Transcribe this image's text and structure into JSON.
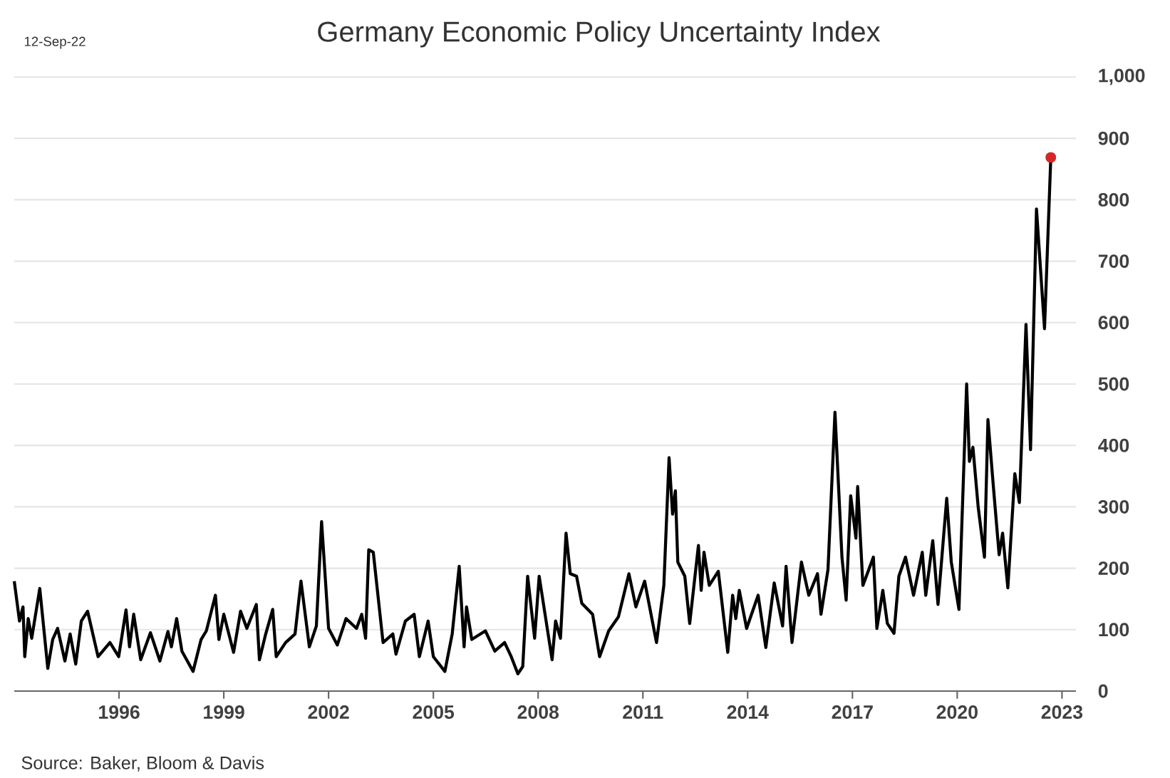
{
  "chart_data": {
    "type": "line",
    "title": "Germany Economic Policy Uncertainty Index",
    "annotations": [
      "12-Sep-22",
      "Source: Baker, Bloom & Davis"
    ],
    "xlim": [
      1993,
      2023.4
    ],
    "xticks": [
      1996,
      1999,
      2002,
      2005,
      2008,
      2011,
      2014,
      2017,
      2020,
      2023
    ],
    "ylim": [
      0,
      1000
    ],
    "yticks": [
      0,
      100,
      200,
      300,
      400,
      500,
      600,
      700,
      800,
      900,
      {
        "value": 1000,
        "label": "1,000"
      }
    ],
    "grid": "y",
    "line_style": "solid",
    "series": [
      {
        "type": "line",
        "color": "#000000",
        "x": [
          1993.0,
          1993.15,
          1993.25,
          1993.3,
          1993.4,
          1993.5,
          1993.73,
          1993.96,
          1994.1,
          1994.24,
          1994.45,
          1994.6,
          1994.76,
          1994.92,
          1995.1,
          1995.4,
          1995.74,
          1995.99,
          1996.2,
          1996.3,
          1996.42,
          1996.62,
          1996.9,
          1997.17,
          1997.4,
          1997.5,
          1997.65,
          1997.8,
          1998.12,
          1998.35,
          1998.5,
          1998.76,
          1998.86,
          1999.0,
          1999.28,
          1999.48,
          1999.66,
          1999.93,
          2000.02,
          2000.2,
          2000.4,
          2000.5,
          2000.77,
          2001.04,
          2001.21,
          2001.45,
          2001.65,
          2001.8,
          2002.0,
          2002.25,
          2002.5,
          2002.8,
          2002.95,
          2003.06,
          2003.15,
          2003.28,
          2003.56,
          2003.84,
          2003.93,
          2004.2,
          2004.45,
          2004.6,
          2004.85,
          2005.0,
          2005.33,
          2005.54,
          2005.74,
          2005.88,
          2005.95,
          2006.1,
          2006.49,
          2006.76,
          2007.04,
          2007.23,
          2007.42,
          2007.56,
          2007.7,
          2007.9,
          2008.03,
          2008.4,
          2008.5,
          2008.64,
          2008.8,
          2008.92,
          2009.1,
          2009.25,
          2009.56,
          2009.76,
          2010.02,
          2010.3,
          2010.6,
          2010.8,
          2011.05,
          2011.27,
          2011.39,
          2011.6,
          2011.75,
          2011.85,
          2011.93,
          2012.0,
          2012.2,
          2012.34,
          2012.59,
          2012.67,
          2012.75,
          2012.9,
          2013.16,
          2013.43,
          2013.57,
          2013.66,
          2013.76,
          2013.97,
          2014.3,
          2014.52,
          2014.76,
          2015.0,
          2015.1,
          2015.27,
          2015.54,
          2015.75,
          2016.0,
          2016.1,
          2016.3,
          2016.5,
          2016.7,
          2016.82,
          2016.95,
          2017.1,
          2017.15,
          2017.3,
          2017.6,
          2017.7,
          2017.87,
          2018.0,
          2018.19,
          2018.33,
          2018.52,
          2018.75,
          2019.0,
          2019.1,
          2019.3,
          2019.45,
          2019.7,
          2019.83,
          2020.05,
          2020.27,
          2020.35,
          2020.45,
          2020.6,
          2020.78,
          2020.88,
          2021.04,
          2021.2,
          2021.3,
          2021.45,
          2021.65,
          2021.78,
          2021.97,
          2022.1,
          2022.27,
          2022.5,
          2022.68
        ],
        "values": [
          179,
          114,
          137,
          56,
          118,
          86,
          167,
          37,
          84,
          102,
          49,
          93,
          44,
          114,
          130,
          56,
          79,
          56,
          132,
          72,
          125,
          51,
          95,
          49,
          97,
          72,
          118,
          65,
          32,
          84,
          98,
          156,
          84,
          125,
          63,
          130,
          102,
          141,
          51,
          93,
          133,
          56,
          79,
          93,
          179,
          72,
          106,
          276,
          102,
          75,
          118,
          102,
          125,
          86,
          230,
          226,
          79,
          93,
          60,
          114,
          125,
          56,
          114,
          56,
          32,
          93,
          203,
          72,
          137,
          84,
          98,
          65,
          79,
          56,
          28,
          40,
          187,
          86,
          187,
          51,
          114,
          86,
          257,
          191,
          187,
          143,
          125,
          56,
          98,
          121,
          191,
          137,
          179,
          114,
          79,
          172,
          380,
          288,
          326,
          210,
          187,
          110,
          237,
          164,
          226,
          172,
          195,
          63,
          156,
          118,
          164,
          102,
          156,
          71,
          176,
          106,
          203,
          79,
          210,
          156,
          191,
          125,
          198,
          454,
          218,
          148,
          318,
          249,
          333,
          172,
          218,
          102,
          164,
          110,
          94,
          187,
          218,
          156,
          226,
          156,
          245,
          141,
          314,
          210,
          133,
          500,
          374,
          397,
          300,
          218,
          442,
          330,
          222,
          257,
          168,
          354,
          307,
          597,
          393,
          785,
          590,
          869
        ]
      },
      {
        "type": "scatter",
        "color": "#d62728",
        "marker": "circle",
        "x": [
          2022.68
        ],
        "values": [
          869
        ]
      }
    ]
  }
}
